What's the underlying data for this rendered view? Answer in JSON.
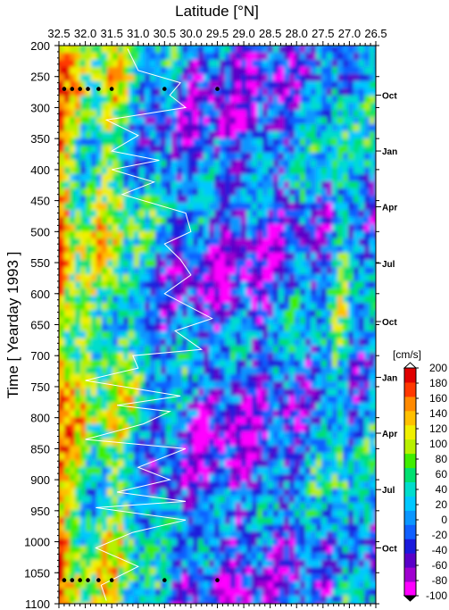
{
  "chart_data": {
    "type": "heatmap",
    "xlabel": "Latitude [°N]",
    "ylabel": "Time [ Yearday 1993 ]",
    "x_ticks": [
      "32.5",
      "32.0",
      "31.5",
      "31.0",
      "30.5",
      "30.0",
      "29.5",
      "29.0",
      "28.5",
      "28.0",
      "27.5",
      "27.0",
      "26.5"
    ],
    "xlim": [
      32.5,
      26.5
    ],
    "ylim": [
      200,
      1100
    ],
    "y_ticks": [
      200,
      250,
      300,
      350,
      400,
      450,
      500,
      550,
      600,
      650,
      700,
      750,
      800,
      850,
      900,
      950,
      1000,
      1050,
      1100
    ],
    "month_labels": [
      {
        "label": "Oct",
        "day": 280
      },
      {
        "label": "Jan",
        "day": 370
      },
      {
        "label": "Apr",
        "day": 460
      },
      {
        "label": "Jul",
        "day": 551
      },
      {
        "label": "Oct",
        "day": 645
      },
      {
        "label": "Jan",
        "day": 735
      },
      {
        "label": "Apr",
        "day": 825
      },
      {
        "label": "Jul",
        "day": 916
      },
      {
        "label": "Oct",
        "day": 1010
      }
    ],
    "colorbar": {
      "unit": "[cm/s]",
      "min": -100,
      "max": 200,
      "ticks": [
        200,
        180,
        160,
        140,
        120,
        100,
        80,
        60,
        40,
        20,
        0,
        -20,
        -40,
        -60,
        -80,
        -100
      ],
      "colors": [
        "#ff00ff",
        "#a000d0",
        "#5a00c8",
        "#1a1adc",
        "#1060ff",
        "#0a96ff",
        "#00c8ff",
        "#00ddcc",
        "#00e070",
        "#40ee00",
        "#b8f000",
        "#f0f000",
        "#ffc000",
        "#ff8a00",
        "#ff3800",
        "#e00000"
      ]
    },
    "white_line": [
      {
        "lat": 31.2,
        "day": 205
      },
      {
        "lat": 31.0,
        "day": 240
      },
      {
        "lat": 30.2,
        "day": 260
      },
      {
        "lat": 30.4,
        "day": 280
      },
      {
        "lat": 30.1,
        "day": 300
      },
      {
        "lat": 31.6,
        "day": 320
      },
      {
        "lat": 31.0,
        "day": 345
      },
      {
        "lat": 31.5,
        "day": 370
      },
      {
        "lat": 30.6,
        "day": 385
      },
      {
        "lat": 31.5,
        "day": 400
      },
      {
        "lat": 30.7,
        "day": 420
      },
      {
        "lat": 31.3,
        "day": 440
      },
      {
        "lat": 30.1,
        "day": 470
      },
      {
        "lat": 30.0,
        "day": 500
      },
      {
        "lat": 30.5,
        "day": 520
      },
      {
        "lat": 30.2,
        "day": 545
      },
      {
        "lat": 30.0,
        "day": 570
      },
      {
        "lat": 30.5,
        "day": 600
      },
      {
        "lat": 29.6,
        "day": 640
      },
      {
        "lat": 30.3,
        "day": 660
      },
      {
        "lat": 29.8,
        "day": 690
      },
      {
        "lat": 31.1,
        "day": 700
      },
      {
        "lat": 31.0,
        "day": 720
      },
      {
        "lat": 32.0,
        "day": 740
      },
      {
        "lat": 30.2,
        "day": 765
      },
      {
        "lat": 31.4,
        "day": 780
      },
      {
        "lat": 30.4,
        "day": 790
      },
      {
        "lat": 30.9,
        "day": 810
      },
      {
        "lat": 32.0,
        "day": 835
      },
      {
        "lat": 30.1,
        "day": 850
      },
      {
        "lat": 31.0,
        "day": 880
      },
      {
        "lat": 30.4,
        "day": 900
      },
      {
        "lat": 31.4,
        "day": 920
      },
      {
        "lat": 30.1,
        "day": 935
      },
      {
        "lat": 31.8,
        "day": 945
      },
      {
        "lat": 30.1,
        "day": 965
      },
      {
        "lat": 31.1,
        "day": 985
      },
      {
        "lat": 31.8,
        "day": 1010
      },
      {
        "lat": 31.0,
        "day": 1040
      },
      {
        "lat": 31.7,
        "day": 1070
      },
      {
        "lat": 31.6,
        "day": 1095
      }
    ],
    "marker_rows": [
      {
        "day": 270,
        "lats": [
          32.4,
          32.25,
          32.1,
          31.95,
          31.75,
          31.5,
          30.5,
          29.5
        ]
      },
      {
        "day": 1062,
        "lats": [
          32.4,
          32.25,
          32.1,
          31.95,
          31.75,
          31.5,
          30.5,
          29.5
        ]
      }
    ]
  }
}
